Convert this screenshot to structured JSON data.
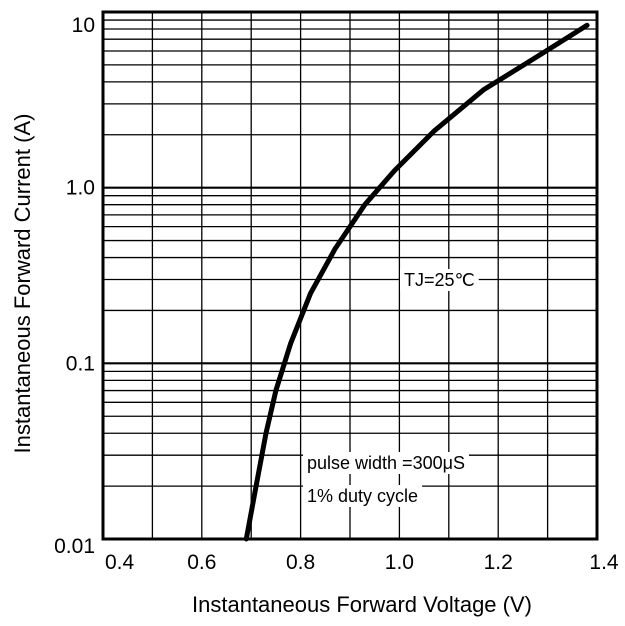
{
  "chart_data": {
    "type": "line",
    "title": "",
    "xlabel": "Instantaneous Forward Voltage (V)",
    "ylabel": "Instantaneous Forward Current (A)",
    "xlim": [
      0.4,
      1.4
    ],
    "ylim": [
      0.01,
      10
    ],
    "y_scale": "log",
    "x_ticks": [
      "0.4",
      "0.6",
      "0.8",
      "1.0",
      "1.2",
      "1.4"
    ],
    "y_ticks": [
      "0.01",
      "0.1",
      "1.0",
      "10"
    ],
    "grid": true,
    "legend": "none",
    "annotations": [
      "TJ=25℃",
      "pulse width =300μS",
      "1% duty cycle"
    ],
    "series": [
      {
        "x": [
          0.69,
          0.71,
          0.73,
          0.75,
          0.78,
          0.82,
          0.87,
          0.93,
          0.99,
          1.07,
          1.17,
          1.28,
          1.38
        ],
        "y": [
          0.01,
          0.02,
          0.04,
          0.07,
          0.13,
          0.25,
          0.45,
          0.8,
          1.25,
          2.1,
          3.6,
          5.6,
          8.4
        ]
      }
    ],
    "colors": {
      "line": "#000000",
      "grid": "#000000",
      "background": "#ffffff"
    }
  }
}
